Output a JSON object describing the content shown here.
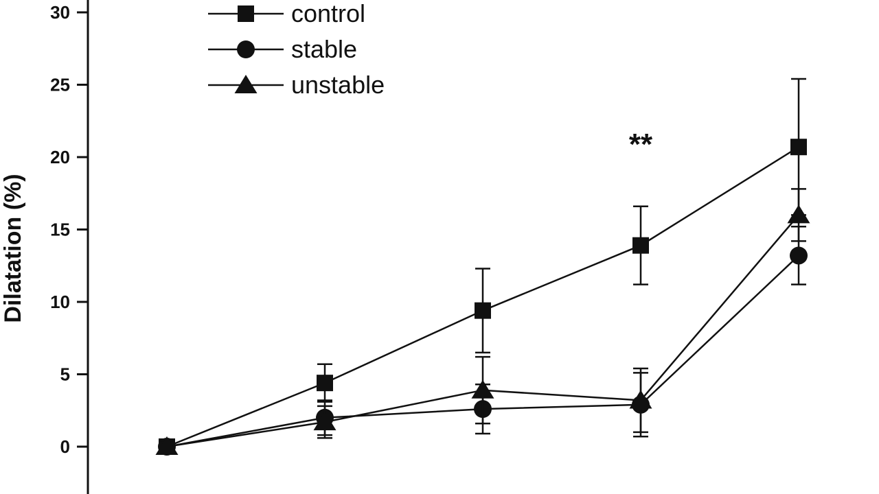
{
  "chart_data": {
    "type": "line",
    "title": "",
    "ylabel": "Dilatation (%)",
    "xlabel": "",
    "ylim": [
      -3,
      31
    ],
    "yticks": [
      0,
      5,
      10,
      15,
      20,
      25,
      30
    ],
    "x": [
      1,
      2,
      3,
      4,
      5
    ],
    "legend_position": "top-left",
    "series": [
      {
        "name": "control",
        "marker": "square",
        "values": [
          0,
          4.4,
          9.4,
          13.9,
          20.7
        ],
        "errors": [
          0.4,
          1.3,
          2.9,
          2.7,
          4.7
        ]
      },
      {
        "name": "stable",
        "marker": "circle",
        "values": [
          0,
          2.0,
          2.6,
          2.9,
          13.2
        ],
        "errors": [
          0.3,
          1.2,
          1.7,
          2.2,
          2.0
        ]
      },
      {
        "name": "unstable",
        "marker": "triangle",
        "values": [
          0,
          1.7,
          3.9,
          3.2,
          16.0
        ],
        "errors": [
          0.3,
          1.1,
          2.3,
          2.2,
          1.8
        ]
      }
    ],
    "annotations": [
      {
        "text": "**",
        "x": 4,
        "y": 20.2
      }
    ],
    "colors": {
      "line": "#111111",
      "background": "#ffffff"
    }
  }
}
